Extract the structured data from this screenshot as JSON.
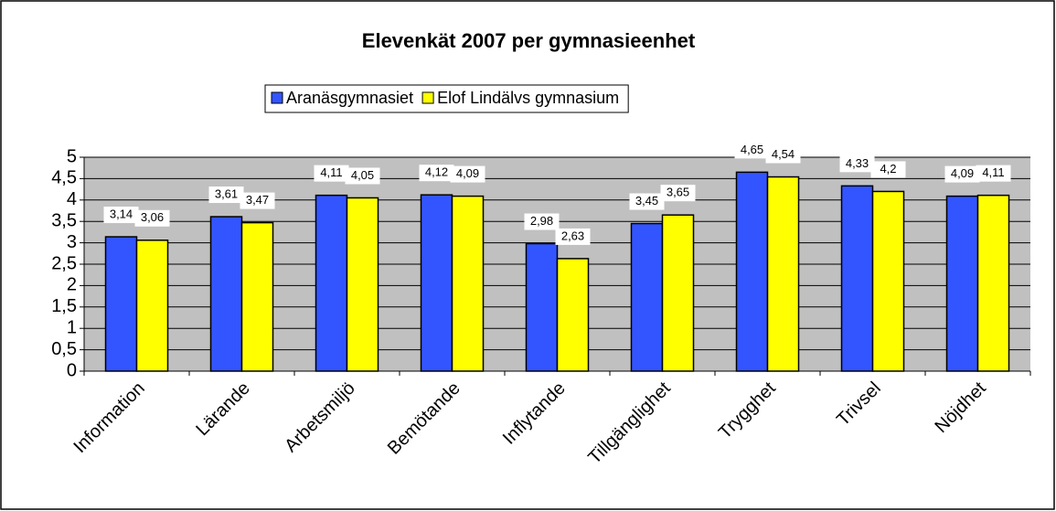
{
  "chart_data": {
    "type": "bar",
    "title": "Elevenkät 2007 per gymnasieenhet",
    "categories": [
      "Information",
      "Lärande",
      "Arbetsmiljö",
      "Bemötande",
      "Inflytande",
      "Tillgänglighet",
      "Trygghet",
      "Trivsel",
      "Nöjdhet"
    ],
    "series": [
      {
        "name": "Aranäsgymnasiet",
        "color": "#3355ff",
        "values": [
          3.14,
          3.61,
          4.11,
          4.12,
          2.98,
          3.45,
          4.65,
          4.33,
          4.09
        ],
        "value_labels": [
          "3,14",
          "3,61",
          "4,11",
          "4,12",
          "2,98",
          "3,45",
          "4,65",
          "4,33",
          "4,09"
        ]
      },
      {
        "name": "Elof Lindälvs gymnasium",
        "color": "#ffff00",
        "values": [
          3.06,
          3.47,
          4.05,
          4.09,
          2.63,
          3.65,
          4.54,
          4.2,
          4.11
        ],
        "value_labels": [
          "3,06",
          "3,47",
          "4,05",
          "4,09",
          "2,63",
          "3,65",
          "4,54",
          "4,2",
          "4,11"
        ]
      }
    ],
    "ylim": [
      0,
      5
    ],
    "yticks": [
      0,
      {
        "value": 0.5,
        "label": "0,5"
      },
      1,
      {
        "value": 1.5,
        "label": "1,5"
      },
      2,
      {
        "value": 2.5,
        "label": "2,5"
      },
      3,
      {
        "value": 3.5,
        "label": "3,5"
      },
      4,
      {
        "value": 4.5,
        "label": "4,5"
      },
      5
    ],
    "grid": true,
    "legend": "top",
    "plot_background": "#c0c0c0"
  }
}
